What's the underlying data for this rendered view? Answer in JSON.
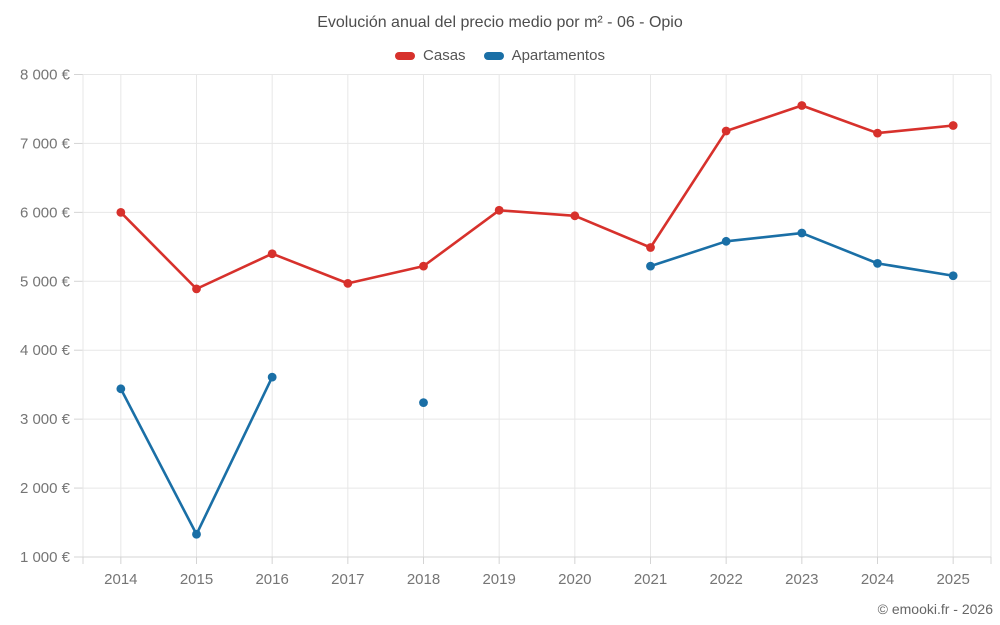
{
  "title": "Evolución anual del precio medio por m² - 06 - Opio",
  "legend": [
    {
      "label": "Casas",
      "color": "#d7312c"
    },
    {
      "label": "Apartamentos",
      "color": "#1a6fa6"
    }
  ],
  "footer": "© emooki.fr - 2026",
  "colors": {
    "casas": "#d7312c",
    "apartamentos": "#1a6fa6",
    "gridline": "#e7e7e7",
    "axis": "#d4d4d4",
    "tick_text": "#757575"
  },
  "chart_data": {
    "type": "line",
    "title": "Evolución anual del precio medio por m² - 06 - Opio",
    "x": [
      "2014",
      "2015",
      "2016",
      "2017",
      "2018",
      "2019",
      "2020",
      "2021",
      "2022",
      "2023",
      "2024",
      "2025"
    ],
    "series": [
      {
        "name": "Casas",
        "color": "#d7312c",
        "values": [
          6000,
          4890,
          5400,
          4970,
          5220,
          6030,
          5950,
          5490,
          7180,
          7550,
          7150,
          7260
        ]
      },
      {
        "name": "Apartamentos",
        "color": "#1a6fa6",
        "values": [
          3440,
          1330,
          3610,
          null,
          3240,
          null,
          null,
          5220,
          5580,
          5700,
          5260,
          5080
        ]
      }
    ],
    "xlabel": "",
    "ylabel": "",
    "ylim": [
      1000,
      8000
    ],
    "y_ticks": [
      1000,
      2000,
      3000,
      4000,
      5000,
      6000,
      7000,
      8000
    ],
    "y_tick_labels": [
      "1 000 €",
      "2 000 €",
      "3 000 €",
      "4 000 €",
      "5 000 €",
      "6 000 €",
      "7 000 €",
      "8 000 €"
    ],
    "grid": true,
    "legend_position": "top"
  }
}
